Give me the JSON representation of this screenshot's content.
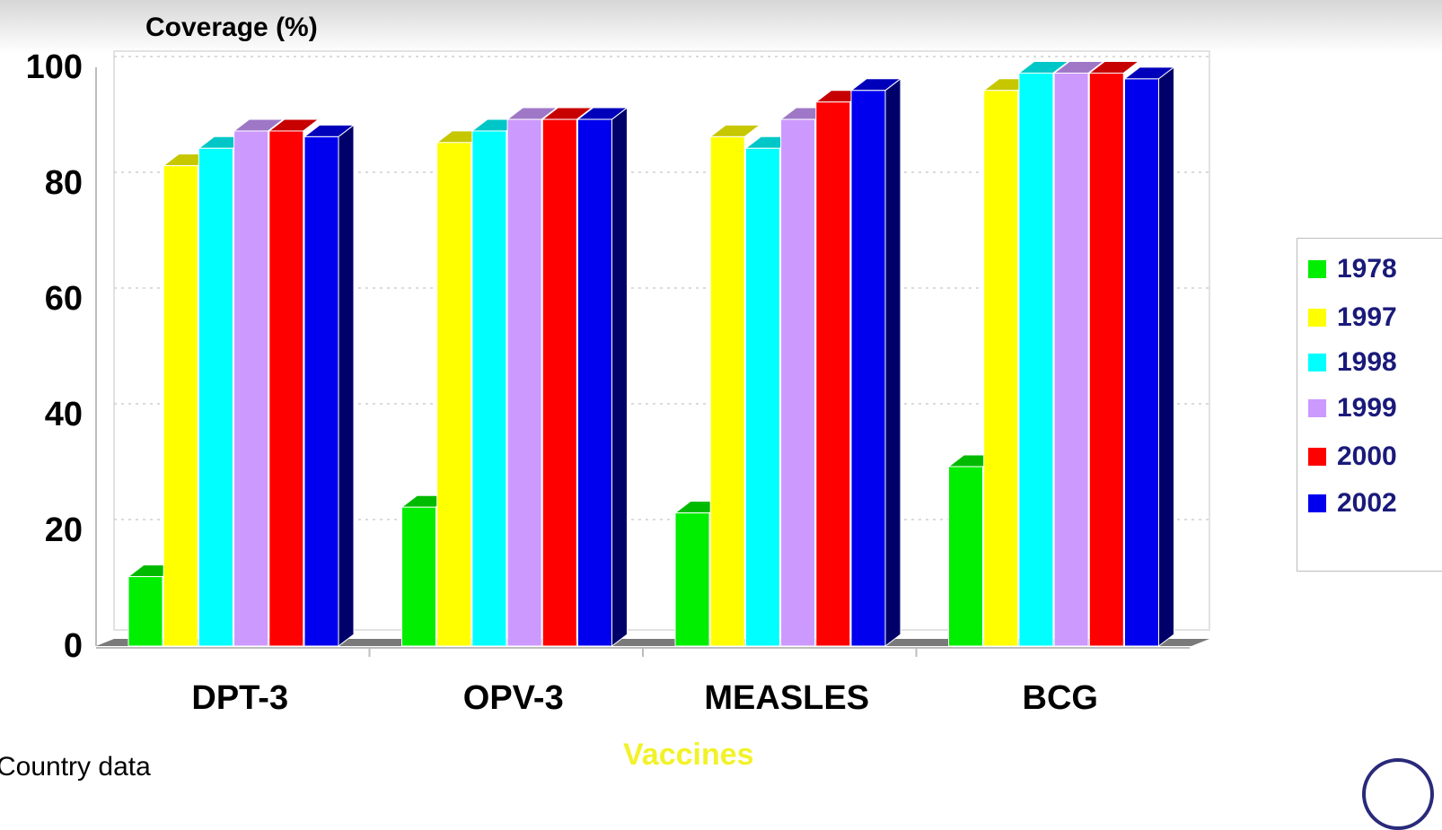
{
  "chart_data": {
    "type": "bar",
    "ylabel": "Coverage (%)",
    "xlabel": "Vaccines",
    "ylim": [
      0,
      100
    ],
    "yticks": [
      0,
      20,
      40,
      60,
      80,
      100
    ],
    "grid": true,
    "legend_position": "right",
    "categories": [
      "DPT-3",
      "OPV-3",
      "MEASLES",
      "BCG"
    ],
    "series": [
      {
        "name": "1978",
        "color": "#00ee00",
        "values": [
          12,
          24,
          23,
          31
        ]
      },
      {
        "name": "1997",
        "color": "#ffff00",
        "values": [
          83,
          87,
          88,
          96
        ]
      },
      {
        "name": "1998",
        "color": "#00ffff",
        "values": [
          86,
          89,
          86,
          99
        ]
      },
      {
        "name": "1999",
        "color": "#cc99ff",
        "values": [
          89,
          91,
          91,
          99
        ]
      },
      {
        "name": "2000",
        "color": "#ff0000",
        "values": [
          89,
          91,
          94,
          99
        ]
      },
      {
        "name": "2002",
        "color": "#0000ee",
        "values": [
          88,
          91,
          96,
          98
        ]
      }
    ]
  },
  "footer_note": "Country data"
}
